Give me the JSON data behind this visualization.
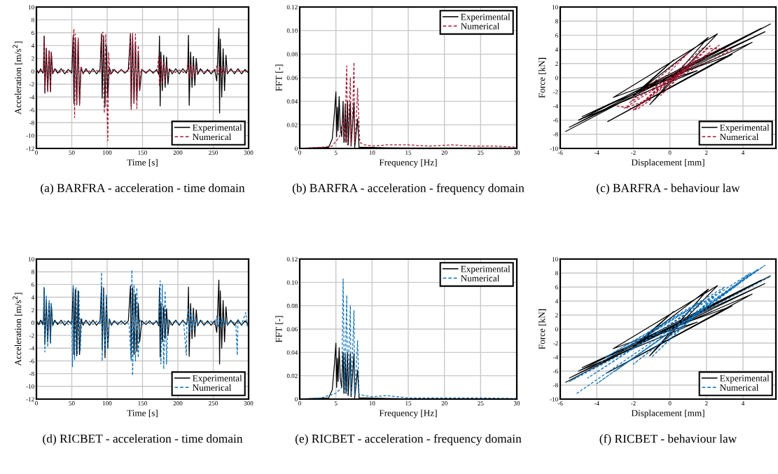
{
  "chart_data": [
    {
      "type": "line",
      "title": "(a) BARFRA - acceleration - time domain",
      "xlabel": "Time [s]",
      "ylabel": "Acceleration [m/s$^{2}$]",
      "xlim": [
        0,
        300
      ],
      "xticks": [
        0,
        50,
        100,
        150,
        200,
        250,
        300
      ],
      "ylim": [
        -12,
        10
      ],
      "yticks": [
        -12,
        -10,
        -8,
        -6,
        -4,
        -2,
        0,
        2,
        4,
        6,
        8,
        10
      ],
      "grid": true,
      "legend": "bottom right",
      "series": [
        {
          "name": "Experimental",
          "color": "#000000",
          "line_style": "solid",
          "x": [
            0,
            3,
            6,
            9,
            10,
            11,
            12,
            14,
            16,
            18,
            20,
            21,
            23,
            26,
            30,
            35,
            40,
            45,
            50,
            52,
            53,
            55,
            57,
            59,
            61,
            63,
            66,
            70,
            75,
            80,
            85,
            90,
            92,
            93,
            95,
            97,
            99,
            101,
            103,
            106,
            110,
            115,
            120,
            125,
            130,
            133,
            134,
            136,
            138,
            140,
            142,
            144,
            146,
            149,
            155,
            160,
            165,
            170,
            173,
            174,
            175,
            176,
            178,
            180,
            182,
            184,
            186,
            188,
            192,
            197,
            202,
            207,
            212,
            214,
            215,
            216,
            218,
            220,
            222,
            224,
            226,
            228,
            232,
            237,
            242,
            247,
            252,
            255,
            257,
            258,
            259,
            260,
            262,
            264,
            266,
            268,
            270,
            275,
            280,
            285,
            290,
            295,
            300
          ],
          "values": [
            0.3,
            -0.3,
            0.4,
            -0.3,
            0.2,
            5.5,
            -3.4,
            3.6,
            -3.0,
            3.2,
            -3.2,
            3.0,
            -0.4,
            0.4,
            -0.3,
            0.4,
            -0.4,
            0.3,
            -0.3,
            5.5,
            -5.0,
            5.2,
            -5.2,
            5.0,
            -5.0,
            0.6,
            -0.4,
            0.4,
            -0.4,
            0.4,
            -0.4,
            0.3,
            5.8,
            -4.2,
            5.5,
            -5.5,
            4.0,
            -4.0,
            0.6,
            -0.4,
            0.3,
            -0.3,
            0.3,
            -0.3,
            0.3,
            5.8,
            -5.5,
            5.5,
            -5.0,
            4.5,
            -4.5,
            3.0,
            -3.0,
            0.3,
            -0.3,
            0.3,
            -0.3,
            0.3,
            -0.5,
            5.5,
            -5.4,
            3.0,
            -3.0,
            2.5,
            -2.5,
            2.2,
            -2.0,
            0.4,
            -0.4,
            0.4,
            -0.4,
            0.4,
            -0.3,
            0.5,
            5.6,
            -5.3,
            3.0,
            -2.5,
            2.3,
            -2.2,
            2.0,
            -0.5,
            0.4,
            -0.4,
            0.3,
            -0.4,
            0.3,
            -1.5,
            4.0,
            6.7,
            -6.5,
            5.0,
            -4.0,
            3.5,
            -3.0,
            2.5,
            -0.4,
            0.4,
            -0.4,
            0.4,
            -0.4,
            0.3,
            -0.3
          ]
        },
        {
          "name": "Numerical",
          "color": "#a3142f",
          "line_style": "dashed",
          "x": [
            0,
            4,
            8,
            10,
            11,
            12,
            14,
            16,
            18,
            20,
            21,
            23,
            27,
            32,
            38,
            44,
            50,
            52,
            53,
            54,
            55,
            57,
            59,
            61,
            63,
            66,
            72,
            78,
            84,
            90,
            92,
            94,
            96,
            98,
            100,
            101,
            102,
            104,
            108,
            114,
            120,
            126,
            131,
            133,
            134,
            136,
            138,
            140,
            142,
            144,
            146,
            148,
            154,
            160,
            166,
            171,
            173,
            174,
            176,
            178,
            180,
            182,
            184,
            186,
            190,
            196,
            202,
            208,
            213,
            214,
            216,
            218,
            220,
            222,
            224,
            226,
            228,
            234,
            240,
            246,
            252,
            255,
            257,
            259,
            261,
            263,
            265,
            267,
            270,
            276,
            282,
            288,
            294,
            300
          ],
          "values": [
            0.2,
            -0.2,
            0.2,
            -0.2,
            5.5,
            -3.4,
            3.6,
            -3.2,
            3.1,
            -3.3,
            3.0,
            -0.3,
            0.3,
            -0.2,
            0.2,
            -0.2,
            0.2,
            5.0,
            6.6,
            -7.2,
            5.8,
            -5.3,
            5.2,
            -5.4,
            0.8,
            -0.3,
            0.2,
            -0.2,
            0.2,
            -0.2,
            5.5,
            6.1,
            -6.5,
            5.8,
            -6.0,
            -10.8,
            3.0,
            -0.6,
            0.3,
            -0.2,
            0.2,
            -0.2,
            0.2,
            5.9,
            -6.1,
            5.9,
            -5.0,
            5.8,
            -5.8,
            4.0,
            -3.0,
            0.3,
            -0.2,
            0.2,
            -0.2,
            0.2,
            2.4,
            -2.3,
            2.0,
            -2.0,
            1.5,
            -1.5,
            1.0,
            -0.3,
            0.2,
            -0.2,
            0.2,
            -0.2,
            0.2,
            1.3,
            -1.0,
            1.2,
            -1.0,
            0.9,
            -0.8,
            0.5,
            -0.2,
            0.2,
            -0.2,
            0.2,
            -0.2,
            0.8,
            -0.5,
            0.7,
            -0.5,
            0.6,
            -0.4,
            0.4,
            -0.2,
            0.2,
            -0.2,
            0.2,
            -0.2,
            0.2
          ]
        }
      ]
    },
    {
      "type": "line",
      "title": "(b) BARFRA - acceleration - frequency domain",
      "xlabel": "Frequency [Hz]",
      "ylabel": "FFT [-]",
      "xlim": [
        0,
        30
      ],
      "xticks": [
        0,
        5,
        10,
        15,
        20,
        25,
        30
      ],
      "ylim": [
        0,
        0.12
      ],
      "yticks": [
        0,
        0.02,
        0.04,
        0.06,
        0.08,
        {
          "value": 0.1,
          "label": "0.10"
        },
        0.12
      ],
      "grid": true,
      "legend": "top right",
      "series": [
        {
          "name": "Experimental",
          "color": "#000000",
          "line_style": "solid",
          "x": [
            0,
            2,
            4,
            4.5,
            4.8,
            5.0,
            5.1,
            5.2,
            5.3,
            5.45,
            5.6,
            5.8,
            6.0,
            6.1,
            6.3,
            6.4,
            6.6,
            6.7,
            7.0,
            7.1,
            7.5,
            7.6,
            8.0,
            8.2,
            9,
            12,
            15,
            20,
            25,
            30
          ],
          "values": [
            0,
            0.0005,
            0.001,
            0.008,
            0.03,
            0.048,
            0.01,
            0.035,
            0.015,
            0.044,
            0.018,
            0.01,
            0.04,
            0.005,
            0.038,
            0.005,
            0.04,
            0.003,
            0.039,
            0.002,
            0.039,
            0.001,
            0.025,
            0.001,
            0.001,
            0.0005,
            0.0003,
            0.0003,
            0.0003,
            0.0003
          ]
        },
        {
          "name": "Numerical",
          "color": "#a3142f",
          "line_style": "dashed",
          "x": [
            0,
            3,
            4.5,
            5.5,
            6.0,
            6.2,
            6.5,
            6.6,
            6.8,
            7.0,
            7.1,
            7.3,
            7.5,
            7.6,
            7.8,
            8.0,
            8.3,
            9,
            10,
            12,
            15,
            18,
            21,
            24,
            27,
            30
          ],
          "values": [
            0,
            0.001,
            0.002,
            0.01,
            0.025,
            0.005,
            0.07,
            0.003,
            0.03,
            0.06,
            0.003,
            0.025,
            0.073,
            0.005,
            0.02,
            0.051,
            0.005,
            0.003,
            0.002,
            0.003,
            0.003,
            0.002,
            0.003,
            0.002,
            0.002,
            0.001
          ]
        }
      ]
    },
    {
      "type": "line",
      "title": "(c) BARFRA - behaviour law",
      "xlabel": "Displacement [mm]",
      "ylabel": "Force [kN]",
      "xlim": [
        -6,
        5.8
      ],
      "xticks": [
        -6,
        -4,
        -2,
        0,
        2,
        4
      ],
      "ylim": [
        -10,
        10
      ],
      "yticks": [
        -10,
        -8,
        -6,
        -4,
        -2,
        0,
        2,
        4,
        6,
        8,
        10
      ],
      "grid": true,
      "legend": "bottom right",
      "series": [
        {
          "name": "Experimental",
          "color": "#000000",
          "line_style": "solid",
          "x": [
            -5.7,
            5.5,
            -5.5,
            5.2,
            -4.8,
            4.5,
            -3.4,
            3.4,
            -3.1,
            2.6,
            -1.1,
            2.1,
            -2.0,
            0.2,
            -1.5,
            1.5,
            -5.0,
            5.0
          ],
          "values": [
            -7.6,
            7.6,
            -7.0,
            6.5,
            -5.5,
            5.0,
            -6.2,
            3.3,
            -2.8,
            6.2,
            -3.8,
            5.7,
            -2.5,
            2.5,
            -1.5,
            1.0,
            -6.0,
            7.0
          ]
        },
        {
          "name": "Numerical",
          "color": "#a3142f",
          "line_style": "dashed",
          "x": [
            -2.9,
            -1.8,
            -1.0,
            -2.5,
            0.5,
            -1.5,
            1.5,
            -0.5,
            2.2,
            0.0,
            2.7,
            -2.0,
            1.8,
            3.4,
            -1.0,
            1.0,
            -2.2,
            2.5
          ],
          "values": [
            -4.0,
            -4.5,
            -3.0,
            -4.3,
            0.5,
            -3.5,
            3.0,
            -2.5,
            4.5,
            -0.5,
            4.6,
            -4.6,
            4.2,
            4.0,
            -1.8,
            3.5,
            -3.5,
            3.8
          ]
        }
      ]
    },
    {
      "type": "line",
      "title": "(d) RICBET - acceleration - time domain",
      "xlabel": "Time [s]",
      "ylabel": "Acceleration [m/s$^{2}$]",
      "xlim": [
        0,
        300
      ],
      "xticks": [
        0,
        50,
        100,
        150,
        200,
        250,
        300
      ],
      "ylim": [
        -12,
        10
      ],
      "yticks": [
        -12,
        -10,
        -8,
        -6,
        -4,
        -2,
        0,
        2,
        4,
        6,
        8,
        10
      ],
      "grid": true,
      "legend": "bottom right",
      "series": [
        {
          "name": "Experimental",
          "color": "#000000",
          "line_style": "solid",
          "x": [
            0,
            3,
            6,
            9,
            10,
            11,
            12,
            14,
            16,
            18,
            20,
            21,
            23,
            26,
            30,
            35,
            40,
            45,
            50,
            52,
            53,
            55,
            57,
            59,
            61,
            63,
            66,
            70,
            75,
            80,
            85,
            90,
            92,
            93,
            95,
            97,
            99,
            101,
            103,
            106,
            110,
            115,
            120,
            125,
            130,
            133,
            134,
            136,
            138,
            140,
            142,
            144,
            146,
            149,
            155,
            160,
            165,
            170,
            173,
            174,
            175,
            176,
            178,
            180,
            182,
            184,
            186,
            188,
            192,
            197,
            202,
            207,
            212,
            214,
            215,
            216,
            218,
            220,
            222,
            224,
            226,
            228,
            232,
            237,
            242,
            247,
            252,
            255,
            257,
            258,
            259,
            260,
            262,
            264,
            266,
            268,
            270,
            275,
            280,
            285,
            290,
            295,
            300
          ],
          "values": [
            0.3,
            -0.3,
            0.4,
            -0.3,
            0.2,
            5.5,
            -3.4,
            3.6,
            -3.0,
            3.2,
            -3.2,
            3.0,
            -0.4,
            0.4,
            -0.3,
            0.4,
            -0.4,
            0.3,
            -0.3,
            5.5,
            -5.0,
            5.2,
            -5.2,
            5.0,
            -5.0,
            0.6,
            -0.4,
            0.4,
            -0.4,
            0.4,
            -0.4,
            0.3,
            5.8,
            -4.2,
            5.5,
            -5.5,
            4.0,
            -4.0,
            0.6,
            -0.4,
            0.3,
            -0.3,
            0.3,
            -0.3,
            0.3,
            5.8,
            -5.5,
            5.5,
            -5.0,
            4.5,
            -4.5,
            3.0,
            -3.0,
            0.3,
            -0.3,
            0.3,
            -0.3,
            0.3,
            -0.5,
            5.5,
            -5.4,
            3.0,
            -3.0,
            2.5,
            -2.5,
            2.2,
            -2.0,
            0.4,
            -0.4,
            0.4,
            -0.4,
            0.4,
            -0.3,
            0.5,
            5.6,
            -5.3,
            3.0,
            -2.5,
            2.3,
            -2.2,
            2.0,
            -0.5,
            0.4,
            -0.4,
            0.3,
            -0.4,
            0.3,
            -1.5,
            4.0,
            6.7,
            -6.5,
            5.0,
            -4.0,
            3.5,
            -3.0,
            2.5,
            -0.4,
            0.4,
            -0.4,
            0.4,
            -0.4,
            0.3,
            -0.3
          ]
        },
        {
          "name": "Numerical",
          "color": "#0a6fb8",
          "line_style": "dashed",
          "x": [
            0,
            4,
            8,
            10,
            11,
            12,
            14,
            16,
            18,
            20,
            21,
            23,
            27,
            33,
            39,
            45,
            50,
            51,
            52,
            54,
            56,
            58,
            60,
            62,
            64,
            68,
            74,
            80,
            86,
            91,
            92,
            93,
            95,
            97,
            99,
            101,
            103,
            107,
            113,
            119,
            125,
            131,
            134,
            135,
            136,
            138,
            140,
            142,
            144,
            146,
            150,
            156,
            162,
            168,
            173,
            175,
            176,
            178,
            180,
            182,
            184,
            186,
            190,
            196,
            202,
            208,
            212,
            213,
            215,
            216,
            218,
            220,
            222,
            224,
            226,
            228,
            234,
            240,
            246,
            252,
            255,
            257,
            259,
            261,
            263,
            265,
            267,
            270,
            276,
            282,
            284,
            285,
            290,
            296,
            298,
            300
          ],
          "values": [
            0.3,
            -0.3,
            0.3,
            -0.3,
            5.5,
            -4.6,
            4.2,
            -3.8,
            3.5,
            -3.2,
            3.0,
            -0.5,
            0.3,
            -0.3,
            0.3,
            -0.3,
            0.3,
            -6.9,
            6.0,
            -5.8,
            5.5,
            -5.0,
            4.9,
            -4.5,
            0.6,
            -0.3,
            0.3,
            -0.3,
            0.3,
            -0.3,
            7.9,
            -6.0,
            5.0,
            -4.5,
            4.5,
            -4.0,
            0.6,
            -0.3,
            0.3,
            -0.3,
            0.3,
            -0.3,
            -6.0,
            8.3,
            -8.3,
            6.0,
            -6.0,
            5.5,
            -5.5,
            0.6,
            -0.3,
            0.3,
            -0.3,
            0.3,
            -0.3,
            6.6,
            -6.5,
            6.0,
            -7.3,
            5.0,
            -6.5,
            0.6,
            -0.3,
            0.3,
            -0.3,
            0.3,
            -5.1,
            0.8,
            2.3,
            -1.5,
            1.8,
            -1.2,
            1.2,
            -1.0,
            0.6,
            -0.3,
            0.3,
            -0.3,
            0.3,
            -0.3,
            1.0,
            -0.8,
            0.9,
            -0.7,
            0.8,
            -0.5,
            0.4,
            -0.3,
            0.3,
            -0.3,
            -5.1,
            0.5,
            -0.3,
            1.6,
            -0.6,
            0.3
          ]
        }
      ]
    },
    {
      "type": "line",
      "title": "(e) RICBET - acceleration - frequency domain",
      "xlabel": "Frequency [Hz]",
      "ylabel": "FFT [-]",
      "xlim": [
        0,
        30
      ],
      "xticks": [
        0,
        5,
        10,
        15,
        20,
        25,
        30
      ],
      "ylim": [
        0,
        0.12
      ],
      "yticks": [
        0,
        0.02,
        0.04,
        0.06,
        0.08,
        {
          "value": 0.1,
          "label": "0.10"
        },
        0.12
      ],
      "grid": true,
      "legend": "top right",
      "series": [
        {
          "name": "Experimental",
          "color": "#000000",
          "line_style": "solid",
          "x": [
            0,
            2,
            4,
            4.5,
            4.8,
            5.0,
            5.1,
            5.2,
            5.3,
            5.45,
            5.6,
            5.8,
            6.0,
            6.1,
            6.3,
            6.4,
            6.6,
            6.7,
            7.0,
            7.1,
            7.5,
            7.6,
            8.0,
            8.2,
            9,
            12,
            15,
            20,
            25,
            30
          ],
          "values": [
            0,
            0.0005,
            0.001,
            0.008,
            0.03,
            0.048,
            0.01,
            0.035,
            0.015,
            0.044,
            0.018,
            0.01,
            0.04,
            0.005,
            0.038,
            0.005,
            0.04,
            0.003,
            0.039,
            0.002,
            0.039,
            0.001,
            0.025,
            0.001,
            0.001,
            0.0005,
            0.0003,
            0.0003,
            0.0003,
            0.0003
          ]
        },
        {
          "name": "Numerical",
          "color": "#0a6fb8",
          "line_style": "dashed",
          "x": [
            0,
            3,
            5.0,
            5.8,
            6.0,
            6.2,
            6.5,
            6.6,
            7.0,
            7.1,
            7.5,
            7.6,
            8.0,
            8.2,
            9,
            10,
            12,
            15,
            20,
            25,
            30
          ],
          "values": [
            0,
            0.001,
            0.005,
            0.01,
            0.103,
            0.005,
            0.089,
            0.004,
            0.08,
            0.004,
            0.076,
            0.003,
            0.05,
            0.004,
            0.003,
            0.002,
            0.003,
            0.001,
            0.001,
            0.001,
            0.0005
          ]
        }
      ]
    },
    {
      "type": "line",
      "title": "(f) RICBET - behaviour law",
      "xlabel": "Displacement [mm]",
      "ylabel": "Force [kN]",
      "xlim": [
        -6,
        5.8
      ],
      "xticks": [
        -6,
        -4,
        -2,
        0,
        2,
        4
      ],
      "ylim": [
        -10,
        10
      ],
      "yticks": [
        -10,
        -8,
        -6,
        -4,
        -2,
        0,
        2,
        4,
        6,
        8,
        10
      ],
      "grid": true,
      "legend": "bottom right",
      "series": [
        {
          "name": "Experimental",
          "color": "#000000",
          "line_style": "solid",
          "x": [
            -5.7,
            5.5,
            -5.5,
            5.2,
            -4.8,
            4.5,
            -3.4,
            3.4,
            -3.1,
            2.6,
            -1.1,
            2.1,
            -2.0,
            0.2,
            -1.5,
            1.5,
            -5.0,
            5.0
          ],
          "values": [
            -7.6,
            7.6,
            -7.0,
            6.5,
            -5.5,
            5.0,
            -6.2,
            3.3,
            -2.8,
            6.2,
            -3.8,
            5.7,
            -2.5,
            2.5,
            -1.5,
            1.0,
            -6.0,
            7.0
          ]
        },
        {
          "name": "Numerical",
          "color": "#0a6fb8",
          "line_style": "dashed",
          "x": [
            -5.1,
            4.8,
            -4.0,
            5.2,
            -3.0,
            3.8,
            -2.0,
            4.4,
            -4.5,
            2.5,
            -1.0,
            3.0,
            -3.5,
            1.5,
            -2.5,
            1.8,
            -5.5,
            5.5
          ],
          "values": [
            -9.2,
            8.5,
            -7.8,
            9.1,
            -6.0,
            6.5,
            -5.0,
            8.0,
            -7.0,
            5.0,
            -4.0,
            6.0,
            -4.0,
            3.5,
            -3.0,
            4.0,
            -7.5,
            7.5
          ]
        }
      ]
    }
  ]
}
